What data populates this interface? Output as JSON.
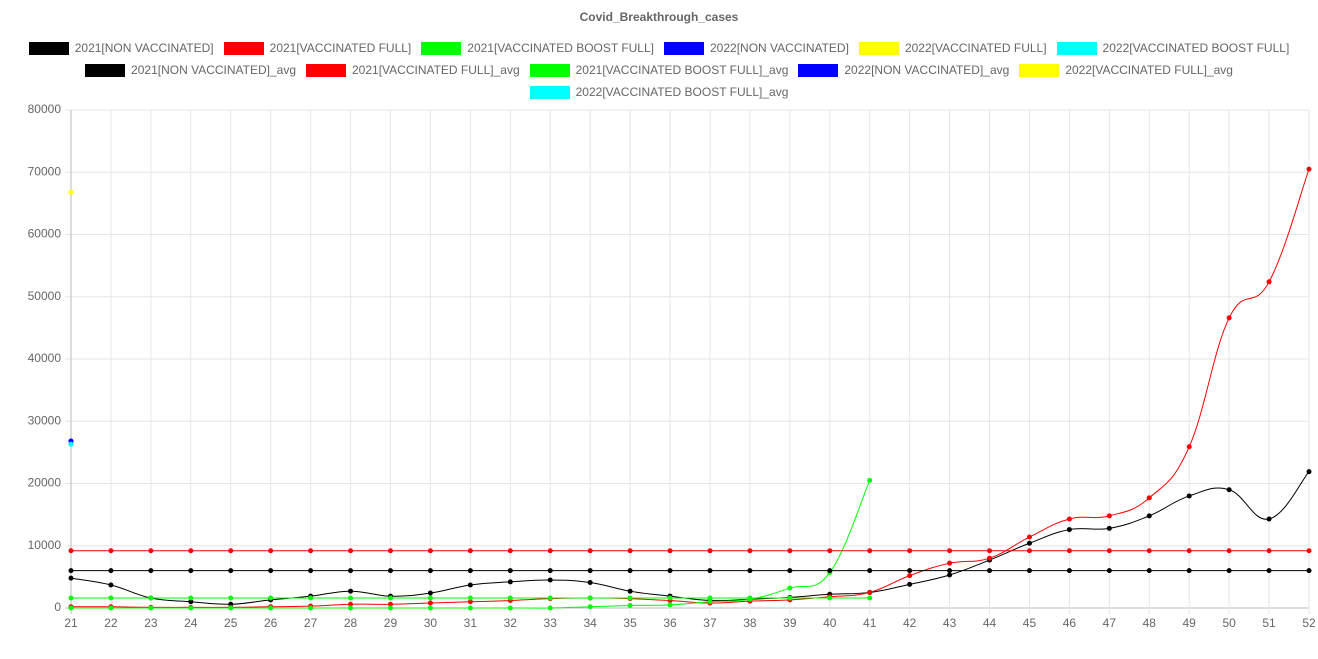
{
  "chart_data": {
    "type": "line",
    "title": "Covid_Breakthrough_cases",
    "x": [
      21,
      22,
      23,
      24,
      25,
      26,
      27,
      28,
      29,
      30,
      31,
      32,
      33,
      34,
      35,
      36,
      37,
      38,
      39,
      40,
      41,
      42,
      43,
      44,
      45,
      46,
      47,
      48,
      49,
      50,
      51,
      52
    ],
    "xlim": [
      21,
      52
    ],
    "xticks": [
      21,
      22,
      23,
      24,
      25,
      26,
      27,
      28,
      29,
      30,
      31,
      32,
      33,
      34,
      35,
      36,
      37,
      38,
      39,
      40,
      41,
      42,
      43,
      44,
      45,
      46,
      47,
      48,
      49,
      50,
      51,
      52
    ],
    "ylim": [
      0,
      80000
    ],
    "yticks": [
      0,
      10000,
      20000,
      30000,
      40000,
      50000,
      60000,
      70000,
      80000
    ],
    "grid": true,
    "legend": "top",
    "series": [
      {
        "name": "2021[NON VACCINATED]",
        "color": "#000000",
        "values": [
          4800,
          3700,
          1600,
          1000,
          600,
          1300,
          1900,
          2700,
          1900,
          2400,
          3700,
          4200,
          4500,
          4100,
          2700,
          1900,
          1200,
          1400,
          1700,
          2200,
          2500,
          3800,
          5300,
          7700,
          10400,
          12600,
          12800,
          14800,
          18000,
          19000,
          14300,
          21900
        ]
      },
      {
        "name": "2021[VACCINATED FULL]",
        "color": "#ff0000",
        "values": [
          200,
          200,
          100,
          100,
          100,
          200,
          300,
          600,
          600,
          800,
          1000,
          1200,
          1500,
          1600,
          1500,
          1200,
          800,
          1100,
          1300,
          1800,
          2500,
          5200,
          7200,
          8000,
          11400,
          14300,
          14800,
          17700,
          25900,
          46600,
          52400,
          70500
        ]
      },
      {
        "name": "2021[VACCINATED BOOST FULL]",
        "color": "#00ff00",
        "values": [
          0,
          0,
          0,
          0,
          0,
          0,
          0,
          0,
          0,
          0,
          0,
          0,
          0,
          200,
          400,
          500,
          1000,
          1400,
          3200,
          5700,
          20500,
          null,
          null,
          null,
          null,
          null,
          null,
          null,
          null,
          null,
          null,
          null
        ]
      },
      {
        "name": "2022[NON VACCINATED]",
        "color": "#0000ff",
        "values": [
          26800,
          null,
          null,
          null,
          null,
          null,
          null,
          null,
          null,
          null,
          null,
          null,
          null,
          null,
          null,
          null,
          null,
          null,
          null,
          null,
          null,
          null,
          null,
          null,
          null,
          null,
          null,
          null,
          null,
          null,
          null,
          null
        ]
      },
      {
        "name": "2022[VACCINATED FULL]",
        "color": "#ffff00",
        "values": [
          66800,
          null,
          null,
          null,
          null,
          null,
          null,
          null,
          null,
          null,
          null,
          null,
          null,
          null,
          null,
          null,
          null,
          null,
          null,
          null,
          null,
          null,
          null,
          null,
          null,
          null,
          null,
          null,
          null,
          null,
          null,
          null
        ]
      },
      {
        "name": "2022[VACCINATED BOOST FULL]",
        "color": "#00ffff",
        "values": [
          26300,
          null,
          null,
          null,
          null,
          null,
          null,
          null,
          null,
          null,
          null,
          null,
          null,
          null,
          null,
          null,
          null,
          null,
          null,
          null,
          null,
          null,
          null,
          null,
          null,
          null,
          null,
          null,
          null,
          null,
          null,
          null
        ]
      },
      {
        "name": "2021[NON VACCINATED]_avg",
        "color": "#000000",
        "values": [
          6000,
          6000,
          6000,
          6000,
          6000,
          6000,
          6000,
          6000,
          6000,
          6000,
          6000,
          6000,
          6000,
          6000,
          6000,
          6000,
          6000,
          6000,
          6000,
          6000,
          6000,
          6000,
          6000,
          6000,
          6000,
          6000,
          6000,
          6000,
          6000,
          6000,
          6000,
          6000
        ]
      },
      {
        "name": "2021[VACCINATED FULL]_avg",
        "color": "#ff0000",
        "values": [
          9200,
          9200,
          9200,
          9200,
          9200,
          9200,
          9200,
          9200,
          9200,
          9200,
          9200,
          9200,
          9200,
          9200,
          9200,
          9200,
          9200,
          9200,
          9200,
          9200,
          9200,
          9200,
          9200,
          9200,
          9200,
          9200,
          9200,
          9200,
          9200,
          9200,
          9200,
          9200
        ]
      },
      {
        "name": "2021[VACCINATED BOOST FULL]_avg",
        "color": "#00ff00",
        "values": [
          1600,
          1600,
          1600,
          1600,
          1600,
          1600,
          1600,
          1600,
          1600,
          1600,
          1600,
          1600,
          1600,
          1600,
          1600,
          1600,
          1600,
          1600,
          1600,
          1600,
          1600,
          null,
          null,
          null,
          null,
          null,
          null,
          null,
          null,
          null,
          null,
          null
        ]
      },
      {
        "name": "2022[NON VACCINATED]_avg",
        "color": "#0000ff",
        "values": [
          26800,
          null,
          null,
          null,
          null,
          null,
          null,
          null,
          null,
          null,
          null,
          null,
          null,
          null,
          null,
          null,
          null,
          null,
          null,
          null,
          null,
          null,
          null,
          null,
          null,
          null,
          null,
          null,
          null,
          null,
          null,
          null
        ]
      },
      {
        "name": "2022[VACCINATED FULL]_avg",
        "color": "#ffff00",
        "values": [
          66800,
          null,
          null,
          null,
          null,
          null,
          null,
          null,
          null,
          null,
          null,
          null,
          null,
          null,
          null,
          null,
          null,
          null,
          null,
          null,
          null,
          null,
          null,
          null,
          null,
          null,
          null,
          null,
          null,
          null,
          null,
          null
        ]
      },
      {
        "name": "2022[VACCINATED BOOST FULL]_avg",
        "color": "#00ffff",
        "values": [
          26300,
          null,
          null,
          null,
          null,
          null,
          null,
          null,
          null,
          null,
          null,
          null,
          null,
          null,
          null,
          null,
          null,
          null,
          null,
          null,
          null,
          null,
          null,
          null,
          null,
          null,
          null,
          null,
          null,
          null,
          null,
          null
        ]
      }
    ]
  }
}
